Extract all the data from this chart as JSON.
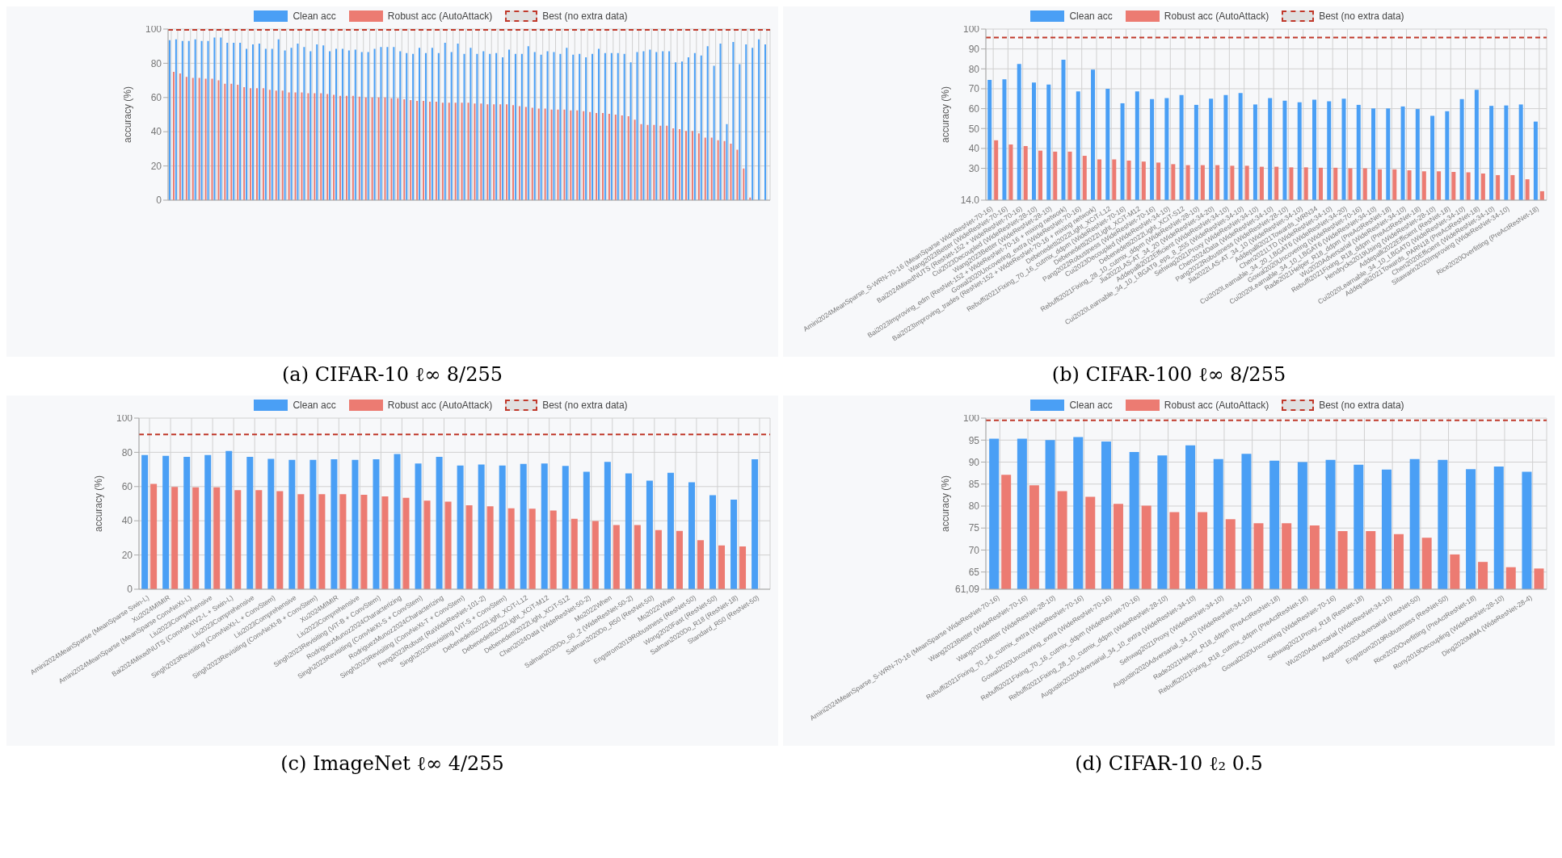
{
  "chart_data": [
    {
      "type": "bar",
      "title": "(a) CIFAR-10 ℓ∞ 8/255",
      "ylabel": "accuracy (%)",
      "legend": "top",
      "grid": true,
      "categories": [
        null,
        null,
        null,
        null,
        null,
        null,
        null,
        null,
        null,
        null,
        null,
        null,
        null,
        null,
        null,
        null,
        null,
        null,
        null,
        null,
        null,
        null,
        null,
        null,
        null,
        null,
        null,
        null,
        null,
        null,
        null,
        null,
        null,
        null,
        null,
        null,
        null,
        null,
        null,
        null,
        null,
        null,
        null,
        null,
        null,
        null,
        null,
        null,
        null,
        null,
        null,
        null,
        null,
        null,
        null,
        null,
        null,
        null,
        null,
        null,
        null,
        null,
        null,
        null,
        null,
        null,
        null,
        null,
        null,
        null,
        null,
        null,
        null,
        null,
        null,
        null,
        null,
        null,
        null,
        null,
        null,
        null,
        null,
        null,
        null,
        null,
        null,
        null,
        null,
        null,
        null,
        null,
        null,
        null
      ],
      "series": [
        {
          "name": "Clean acc",
          "color": "#4a9ff5",
          "values": [
            93.5,
            94,
            93,
            93,
            94,
            93,
            93,
            95,
            95,
            92,
            92,
            92,
            88.5,
            91,
            91.5,
            88.5,
            88.5,
            94,
            87.5,
            89,
            91.5,
            89.5,
            87,
            91,
            90.5,
            87,
            88.5,
            88.5,
            87.5,
            88,
            86.5,
            86.5,
            88.5,
            89.5,
            89.5,
            89.5,
            87,
            86,
            85.5,
            89,
            86,
            89,
            86,
            92,
            86.5,
            91.5,
            85.5,
            89,
            85.5,
            87,
            85.5,
            86,
            83.5,
            88,
            85.5,
            85.5,
            90,
            86.5,
            85,
            87,
            86.5,
            85.5,
            89,
            85,
            85.5,
            83.5,
            85.5,
            88.5,
            86,
            86,
            86,
            85.5,
            80.5,
            86.5,
            87,
            88,
            86.5,
            87,
            87,
            80.5,
            81,
            83.5,
            86,
            84.5,
            90,
            78.5,
            91.5,
            44.5,
            92.5,
            79.5,
            91,
            89,
            94,
            91
          ]
        },
        {
          "name": "Robust acc (AutoAttack)",
          "color": "#ec7b72",
          "values": [
            75,
            74,
            72,
            71.5,
            71.5,
            71,
            71,
            70,
            68,
            68,
            67.5,
            66,
            65.5,
            65.5,
            65.5,
            64.5,
            64,
            64,
            63,
            63,
            63,
            62.5,
            62.5,
            62.5,
            62,
            61.5,
            61,
            61,
            61,
            60.5,
            60,
            60,
            60,
            60,
            59.5,
            59.5,
            59,
            58.5,
            58,
            58,
            57.5,
            57.5,
            57,
            57,
            57,
            57,
            57,
            56.5,
            56.5,
            56,
            56,
            56,
            56,
            55.5,
            55,
            54.5,
            54,
            53.5,
            53.5,
            53,
            53,
            53,
            52.5,
            52.5,
            52,
            51.5,
            51,
            51,
            50.5,
            50,
            49.5,
            49,
            47,
            44.5,
            44,
            44,
            43.5,
            43.5,
            42,
            41.5,
            40.5,
            40.5,
            39,
            36.5,
            36.5,
            35,
            34.5,
            33,
            29.5,
            18.5,
            1.5,
            0,
            0,
            0
          ]
        }
      ],
      "ylim": [
        0,
        100
      ],
      "yticks": [
        0,
        20,
        40,
        60,
        80,
        100
      ],
      "ref_lines": [
        {
          "axis": "y",
          "value": 99.5,
          "label": "Best (no extra data)",
          "color": "#c0392b",
          "line_style": "dashed"
        }
      ]
    },
    {
      "type": "bar",
      "title": "(b) CIFAR-100 ℓ∞ 8/255",
      "ylabel": "accuracy (%)",
      "legend": "top",
      "grid": true,
      "categories": [
        "Amini2024MeanSparse_S-WRN-70-16 (MeanSparse WideResNet-70-16)",
        "Wang2023Better (WideResNet-70-16)",
        "Bai2024MixedNUTS (ResNet-152 + WideResNet-70-16)",
        "Cui2023Decoupled (WideResNet-28-10)",
        "Wang2023Better (WideResNet-28-10)",
        "Bai2023Improving_edm (ResNet-152 + WideResNet-70-16 + mixing network)",
        "Gowal2020Uncovering_extra (WideResNet-70-16)",
        "Bai2023Improving_trades (ResNet-152 + WideResNet-70-16 + mixing network)",
        "Debenedetti2022Light_XCiT-L12",
        "Rebuffi2021Fixing_70_16_cutmix_ddpm (WideResNet-70-16)",
        "Debenedetti2022Light_XCiT-M12",
        "Pang2022Robustness (WideResNet-70-16)",
        "Cui2023Decoupled (WideResNet-34-10)",
        "Debenedetti2022Light_XCiT-S12",
        "Rebuffi2021Fixing_28_10_cutmix_ddpm (WideResNet-28-10)",
        "Jia2022LAS-AT_34_20 (WideResNet-34-20)",
        "Addepalli2022Efficient (WideResNet-34-10)",
        "Cui2020Learnable_34_10_LBGAT9_eps_8_255 (WideResNet-34-10)",
        "Sehwag2021Proxy (WideResNet-34-10)",
        "Chen2024Data (WideResNet-34-10)",
        "Pang2022Robustness (WideResNet-28-10)",
        "Jia2022LAS-AT_34_10 (WideResNet-34-10)",
        "Addepalli2021Towards_WRN34",
        "Chen2021LTD (WideResNet-34-10)",
        "Cui2020Learnable_34_20_LBGAT6 (WideResNet-34-20)",
        "Gowal2020Uncovering (WideResNet-70-16)",
        "Cui2020Learnable_34_10_LBGAT6 (WideResNet-34-10)",
        "Rade2021Helper_R18_ddpm (PreActResNet-18)",
        "Wu2020Adversarial (WideResNet-34-10)",
        "Rebuffi2021Fixing_R18_ddpm (PreActResNet-18)",
        "Hendrycks2019Using (WideResNet-28-10)",
        "Addepalli2022Efficient (ResNet-18)",
        "Cui2020Learnable_34_10_LBGAT0 (WideResNet-34-10)",
        "Addepalli2021Towards_PARN18 (PreActResNet-18)",
        "Chen2020Efficient (WideResNet-34-10)",
        "Sitawarin2020Improving (WideResNet-34-10)",
        null,
        "Rice2020Overfitting (PreActResNet-18)"
      ],
      "series": [
        {
          "name": "Clean acc",
          "color": "#4a9ff5",
          "values": [
            74.4,
            74.7,
            82.5,
            73.1,
            72.1,
            84.6,
            68.7,
            79.6,
            70.0,
            62.7,
            68.7,
            64.8,
            65.3,
            66.8,
            61.9,
            65.0,
            66.8,
            67.9,
            62.1,
            65.3,
            64.0,
            63.2,
            64.5,
            63.7,
            65.0,
            61.9,
            60.1,
            60.1,
            61.1,
            59.8,
            56.4,
            58.7,
            64.8,
            69.5,
            61.4,
            61.6,
            62.1,
            53.5
          ]
        },
        {
          "name": "Robust acc (AutoAttack)",
          "color": "#ec7b72",
          "values": [
            44.1,
            42.0,
            41.2,
            38.9,
            38.4,
            38.4,
            36.3,
            34.5,
            34.5,
            33.9,
            33.4,
            32.9,
            32.1,
            31.6,
            31.6,
            31.6,
            31.3,
            31.3,
            30.8,
            30.8,
            30.5,
            30.5,
            30.3,
            30.3,
            30.0,
            30.0,
            29.5,
            29.5,
            29.0,
            28.5,
            28.5,
            28.2,
            28.0,
            27.4,
            26.6,
            26.6,
            24.5,
            18.5
          ]
        }
      ],
      "ylim": [
        14,
        100
      ],
      "yticks": [
        {
          "value": 14,
          "label": "14.0"
        },
        30,
        40,
        50,
        60,
        70,
        80,
        90,
        100
      ],
      "ref_lines": [
        {
          "axis": "y",
          "value": 95.7,
          "label": "Best (no extra data)",
          "color": "#c0392b",
          "line_style": "dashed"
        }
      ]
    },
    {
      "type": "bar",
      "title": "(c) ImageNet ℓ∞ 4/255",
      "ylabel": "accuracy (%)",
      "legend": "top",
      "grid": true,
      "categories": [
        "Amini2024MeanSparse (MeanSparse Swin-L)",
        "Xu2024MIMIR",
        "Amini2024MeanSparse (MeanSparse ConvNeXt-L)",
        "Liu2023Comprehensive",
        "Bai2024MixedNUTS (ConvNeXtV2-L + Swin-L)",
        "Liu2023Comprehensive",
        "Singh2023Revisiting (ConvNeXt-L + ConvStem)",
        "Liu2023Comprehensive",
        "Singh2023Revisiting (ConvNeXt-B + ConvStem)",
        "Xu2024MIMIR",
        "Liu2023Comprehensive",
        "Singh2023Revisiting (ViT-B + ConvStem)",
        "RodriguezMunoz2024Characterizing",
        "Singh2023Revisiting (ConvNeXt-S + ConvStem)",
        "RodriguezMunoz2024Characterizing",
        "Singh2023Revisiting (ConvNeXt-T + ConvStem)",
        "Peng2023Robust (RaWideResNet-101-2)",
        "Singh2023Revisiting (ViT-S + ConvStem)",
        "Debenedetti2022Light_XCiT-L12",
        "Debenedetti2022Light_XCiT-M12",
        "Debenedetti2022Light_XCiT-S12",
        "Chen2024Data (WideResNet-50-2)",
        "Mo2022When",
        "Salman2020Do_50_2 (WideResNet-50-2)",
        "Salman2020Do_R50 (ResNet-50)",
        "Mo2022When",
        "Engstrom2019Robustness (ResNet-50)",
        "Wong2020Fast (ResNet-50)",
        "Salman2020Do_R18 (ResNet-18)",
        "Standard_R50 (ResNet-50)"
      ],
      "series": [
        {
          "name": "Clean acc",
          "color": "#4a9ff5",
          "values": [
            78.4,
            78.0,
            77.4,
            78.4,
            80.8,
            77.4,
            76.2,
            75.6,
            75.6,
            75.9,
            75.6,
            75.9,
            79.0,
            73.5,
            77.4,
            72.3,
            72.9,
            72.3,
            73.2,
            73.5,
            72.0,
            68.6,
            74.4,
            67.7,
            63.4,
            68.0,
            62.5,
            54.9,
            52.4,
            75.9
          ]
        },
        {
          "name": "Robust acc (AutoAttack)",
          "color": "#ec7b72",
          "values": [
            61.6,
            59.8,
            59.5,
            59.5,
            57.9,
            57.9,
            57.3,
            55.5,
            55.5,
            55.5,
            55.2,
            54.3,
            53.4,
            51.8,
            51.2,
            49.1,
            48.5,
            47.3,
            47.0,
            46.0,
            41.2,
            39.9,
            37.5,
            37.5,
            34.5,
            34.1,
            28.7,
            25.6,
            25.0,
            0
          ]
        }
      ],
      "ylim": [
        0,
        100
      ],
      "yticks": [
        0,
        20,
        40,
        60,
        80,
        100
      ],
      "ref_lines": [
        {
          "axis": "y",
          "value": 90.5,
          "label": "Best (no extra data)",
          "color": "#c0392b",
          "line_style": "dashed"
        }
      ]
    },
    {
      "type": "bar",
      "title": "(d) CIFAR-10 ℓ₂ 0.5",
      "ylabel": "accuracy (%)",
      "legend": "top",
      "grid": true,
      "categories": [
        "Amini2024MeanSparse_S-WRN-70-16 (MeanSparse WideResNet-70-16)",
        "Wang2023Better (WideResNet-70-16)",
        "Wang2023Better (WideResNet-28-10)",
        "Rebuffi2021Fixing_70_16_cutmix_extra (WideResNet-70-16)",
        "Gowal2020Uncovering_extra (WideResNet-70-16)",
        "Rebuffi2021Fixing_70_16_cutmix_ddpm (WideResNet-70-16)",
        "Rebuffi2021Fixing_28_10_cutmix_ddpm (WideResNet-28-10)",
        "Augustin2020Adversarial_34_10_extra (WideResNet-34-10)",
        "Sehwag2021Proxy (WideResNet-34-10)",
        "Augustin2020Adversarial_34_10 (WideResNet-34-10)",
        "Rade2021Helper_R18_ddpm (PreActResNet-18)",
        "Rebuffi2021Fixing_R18_cutmix_ddpm (PreActResNet-18)",
        "Gowal2020Uncovering (WideResNet-70-16)",
        "Sehwag2021Proxy_R18 (ResNet-18)",
        "Wu2020Adversarial (WideResNet-34-10)",
        "Augustin2020Adversarial (ResNet-50)",
        "Engstrom2019Robustness (ResNet-50)",
        "Rice2020Overfitting (PreActResNet-18)",
        "Rony2019Decoupling (WideResNet-28-10)",
        "Ding2020MMA (WideResNet-28-4)"
      ],
      "series": [
        {
          "name": "Clean acc",
          "color": "#4a9ff5",
          "values": [
            95.3,
            95.3,
            95.0,
            95.7,
            94.7,
            92.3,
            91.5,
            93.8,
            90.7,
            91.9,
            90.3,
            90.0,
            90.5,
            89.4,
            88.3,
            90.7,
            90.5,
            88.4,
            89.0,
            87.8
          ]
        },
        {
          "name": "Robust acc (AutoAttack)",
          "color": "#ec7b72",
          "values": [
            87.1,
            84.7,
            83.4,
            82.1,
            80.5,
            80.1,
            78.6,
            78.6,
            77.0,
            76.1,
            76.1,
            75.6,
            74.3,
            74.3,
            73.6,
            72.8,
            69.0,
            67.3,
            66.1,
            65.8
          ]
        }
      ],
      "ylim": [
        61.09,
        100
      ],
      "yticks": [
        {
          "value": 61.09,
          "label": "61,09"
        },
        65,
        70,
        75,
        80,
        85,
        90,
        95,
        100
      ],
      "ref_lines": [
        {
          "axis": "y",
          "value": 99.5,
          "label": "Best (no extra data)",
          "color": "#c0392b",
          "line_style": "dashed"
        }
      ]
    }
  ]
}
